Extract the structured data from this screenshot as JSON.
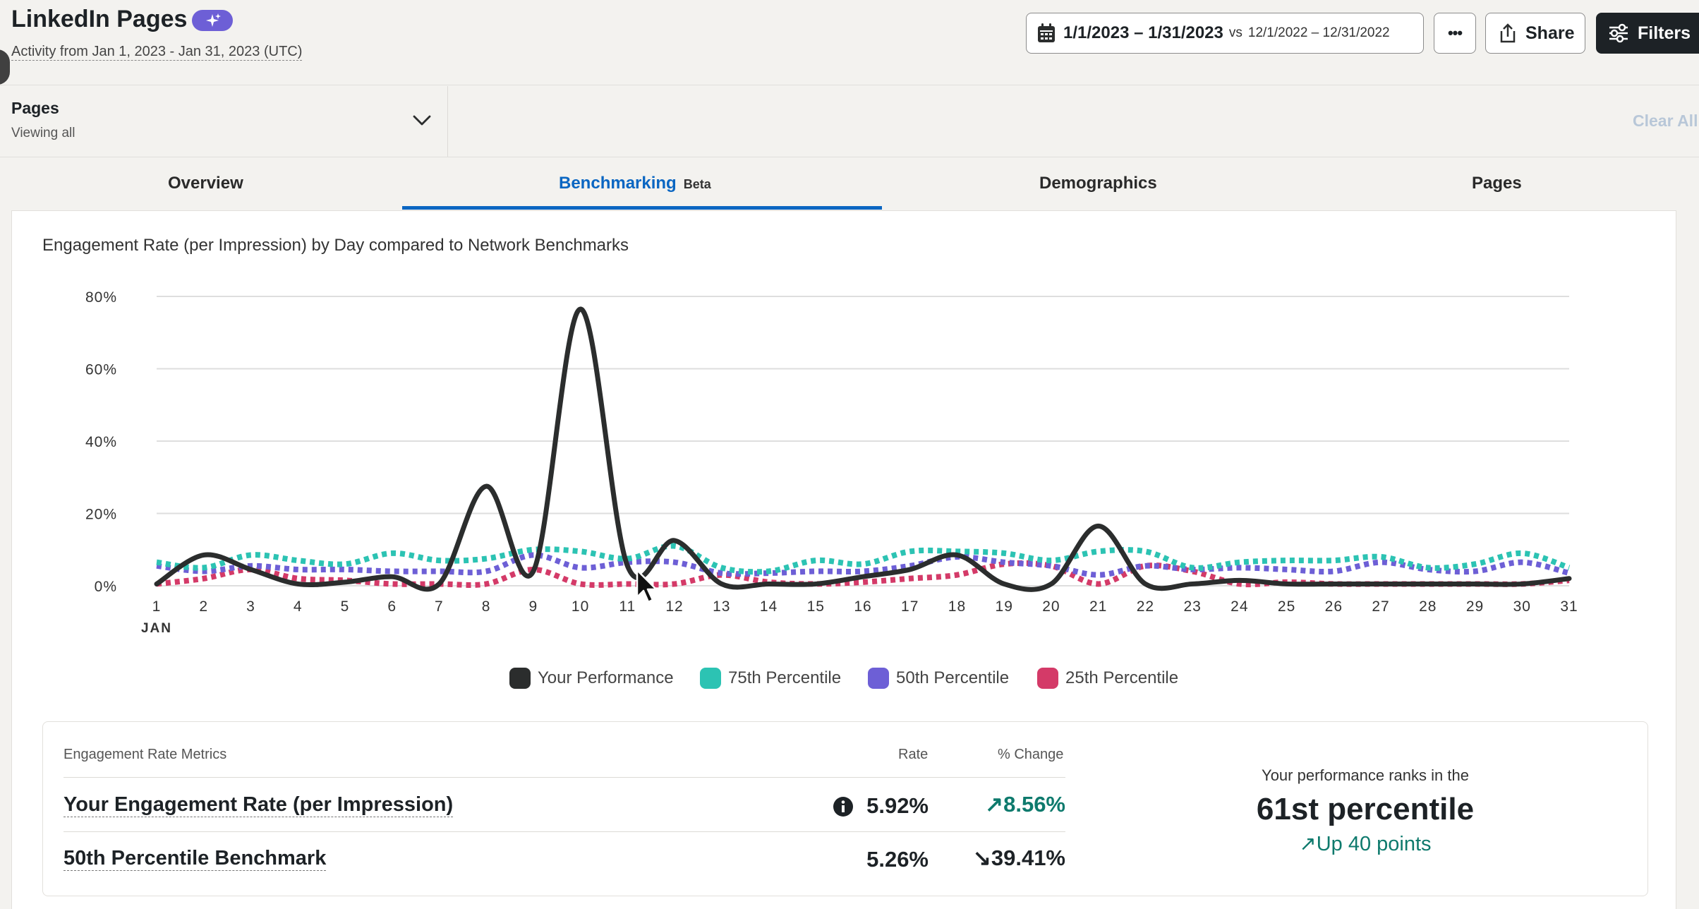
{
  "header": {
    "title": "LinkedIn Pages",
    "subtitle": "Activity from Jan 1, 2023 - Jan 31, 2023 (UTC)",
    "date_range": "1/1/2023 – 1/31/2023",
    "compare_prefix": "vs",
    "compare_range": "12/1/2022 – 12/31/2022",
    "more_label": "•••",
    "share_label": "Share",
    "filters_label": "Filters"
  },
  "filter": {
    "label": "Pages",
    "value": "Viewing all",
    "clear_label": "Clear All"
  },
  "tabs": [
    {
      "label": "Overview"
    },
    {
      "label": "Benchmarking",
      "badge": "Beta"
    },
    {
      "label": "Demographics"
    },
    {
      "label": "Pages"
    }
  ],
  "colors": {
    "accent": "#0a66c2",
    "your": "#2b2d2d",
    "p75": "#2cc3b3",
    "p50": "#6d5fd6",
    "p25": "#d43a68",
    "positive": "#0e7a6d"
  },
  "chart_data": {
    "type": "line",
    "title": "Engagement Rate (per Impression) by Day compared to Network Benchmarks",
    "x": [
      1,
      2,
      3,
      4,
      5,
      6,
      7,
      8,
      9,
      10,
      11,
      12,
      13,
      14,
      15,
      16,
      17,
      18,
      19,
      20,
      21,
      22,
      23,
      24,
      25,
      26,
      27,
      28,
      29,
      30,
      31
    ],
    "x_month_label": "JAN",
    "ylim": [
      0,
      80
    ],
    "yticks": [
      "0%",
      "20%",
      "40%",
      "60%",
      "80%"
    ],
    "ytick_values": [
      0,
      20,
      40,
      60,
      80
    ],
    "series": [
      {
        "name": "Your Performance",
        "style": "solid",
        "values": [
          0.5,
          8.5,
          4.5,
          0.5,
          1,
          2.5,
          0.5,
          27.5,
          4,
          76.5,
          5.5,
          12.5,
          0.5,
          0.5,
          0.5,
          2.5,
          4.5,
          8.5,
          0.5,
          0.5,
          16.5,
          0.5,
          0.5,
          1.5,
          0.5,
          0.5,
          0.5,
          0.5,
          0.5,
          0.5,
          2
        ]
      },
      {
        "name": "75th Percentile",
        "style": "dotted",
        "values": [
          6.5,
          5,
          8.5,
          7,
          6,
          9,
          7,
          7.5,
          10,
          9.5,
          7.5,
          11,
          5,
          4,
          7,
          6,
          9.5,
          9.5,
          9,
          7,
          9.5,
          9.5,
          5,
          6.5,
          7,
          7,
          8,
          5,
          6,
          9,
          5
        ]
      },
      {
        "name": "50th Percentile",
        "style": "dotted",
        "values": [
          5.5,
          4,
          5.5,
          4.5,
          4.5,
          4,
          4,
          4,
          8.5,
          5,
          6.5,
          6.5,
          3.5,
          3.5,
          4,
          4,
          5.5,
          8,
          6.5,
          5.5,
          3,
          5.5,
          4.5,
          5,
          4.5,
          4,
          6.5,
          4.5,
          4,
          6.5,
          3.5
        ]
      },
      {
        "name": "25th Percentile",
        "style": "dotted",
        "values": [
          0.5,
          2,
          4.5,
          2,
          1.5,
          0.5,
          0.5,
          0.5,
          4.5,
          0.5,
          0.5,
          0.5,
          3,
          1,
          0.5,
          1,
          2,
          3,
          6,
          5.5,
          0.5,
          5.5,
          4,
          0.5,
          1,
          0.5,
          0.5,
          0.5,
          0.5,
          0.5,
          1.5
        ]
      }
    ],
    "legend": [
      "Your Performance",
      "75th Percentile",
      "50th Percentile",
      "25th Percentile"
    ],
    "legend_position": "bottom-center",
    "grid": true
  },
  "metrics": {
    "header_label": "Engagement Rate Metrics",
    "rate_header": "Rate",
    "change_header": "% Change",
    "rows": [
      {
        "label": "Your Engagement Rate (per Impression)",
        "rate": "5.92%",
        "change": "8.56%",
        "direction": "up"
      },
      {
        "label": "50th Percentile Benchmark",
        "rate": "5.26%",
        "change": "39.41%",
        "direction": "down"
      }
    ],
    "rank_intro": "Your performance ranks in the",
    "rank_value": "61st percentile",
    "rank_change": "Up 40 points"
  }
}
